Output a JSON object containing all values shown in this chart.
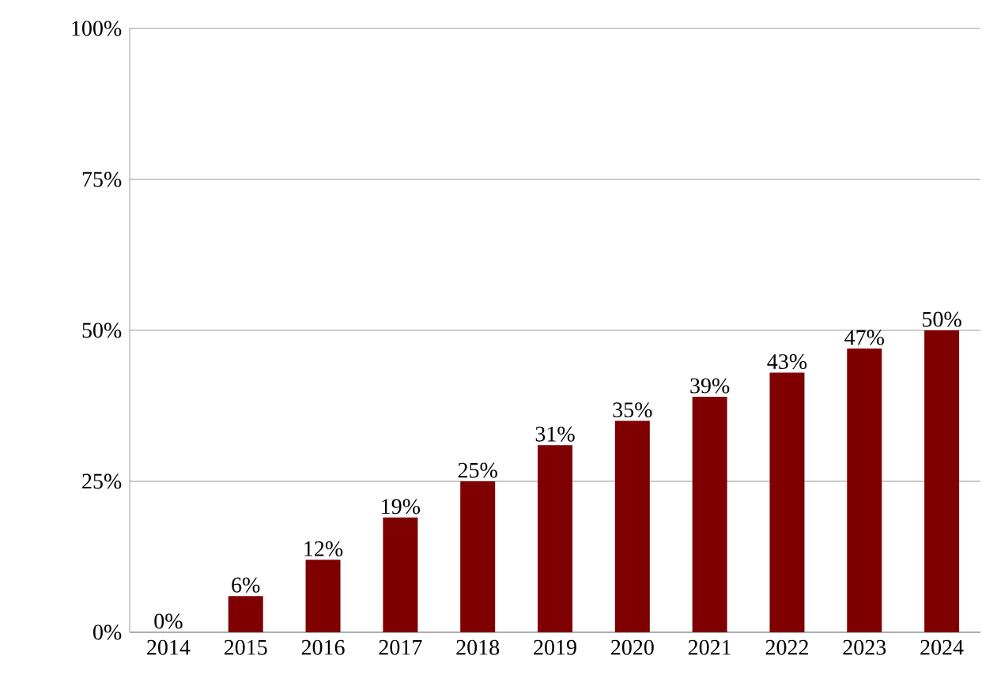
{
  "chart_data": {
    "type": "bar",
    "categories": [
      "2014",
      "2015",
      "2016",
      "2017",
      "2018",
      "2019",
      "2020",
      "2021",
      "2022",
      "2023",
      "2024"
    ],
    "values": [
      0,
      6,
      12,
      19,
      25,
      31,
      35,
      39,
      43,
      47,
      50
    ],
    "value_labels": [
      "0%",
      "6%",
      "12%",
      "19%",
      "25%",
      "31%",
      "35%",
      "39%",
      "43%",
      "47%",
      "50%"
    ],
    "color": "#7f0000",
    "ylim": [
      0,
      100
    ],
    "yticks": [
      {
        "value": 0,
        "label": "0%"
      },
      {
        "value": 25,
        "label": "25%"
      },
      {
        "value": 50,
        "label": "50%"
      },
      {
        "value": 75,
        "label": "75%"
      },
      {
        "value": 100,
        "label": "100%"
      }
    ],
    "grid": "y"
  }
}
